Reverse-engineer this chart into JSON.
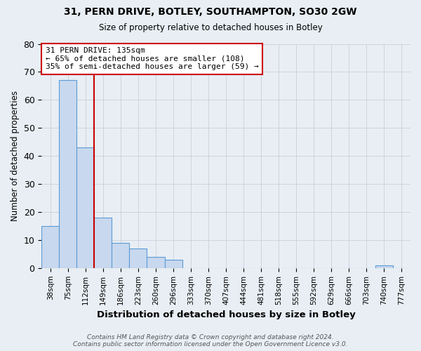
{
  "title1": "31, PERN DRIVE, BOTLEY, SOUTHAMPTON, SO30 2GW",
  "title2": "Size of property relative to detached houses in Botley",
  "xlabel": "Distribution of detached houses by size in Botley",
  "ylabel": "Number of detached properties",
  "categories": [
    "38sqm",
    "75sqm",
    "112sqm",
    "149sqm",
    "186sqm",
    "223sqm",
    "260sqm",
    "296sqm",
    "333sqm",
    "370sqm",
    "407sqm",
    "444sqm",
    "481sqm",
    "518sqm",
    "555sqm",
    "592sqm",
    "629sqm",
    "666sqm",
    "703sqm",
    "740sqm",
    "777sqm"
  ],
  "values": [
    15,
    67,
    43,
    18,
    9,
    7,
    4,
    3,
    0,
    0,
    0,
    0,
    0,
    0,
    0,
    0,
    0,
    0,
    0,
    1,
    0
  ],
  "bar_color": "#c8d8ee",
  "bar_edge_color": "#5b9bd5",
  "reference_line_x": 2.5,
  "annotation_line1": "31 PERN DRIVE: 135sqm",
  "annotation_line2": "← 65% of detached houses are smaller (108)",
  "annotation_line3": "35% of semi-detached houses are larger (59) →",
  "annotation_box_color": "#ffffff",
  "annotation_box_edge_color": "#cc0000",
  "vline_color": "#cc0000",
  "ylim": [
    0,
    80
  ],
  "yticks": [
    0,
    10,
    20,
    30,
    40,
    50,
    60,
    70,
    80
  ],
  "footnote1": "Contains HM Land Registry data © Crown copyright and database right 2024.",
  "footnote2": "Contains public sector information licensed under the Open Government Licence v3.0.",
  "grid_color": "#c8d0da",
  "background_color": "#e8eef4"
}
